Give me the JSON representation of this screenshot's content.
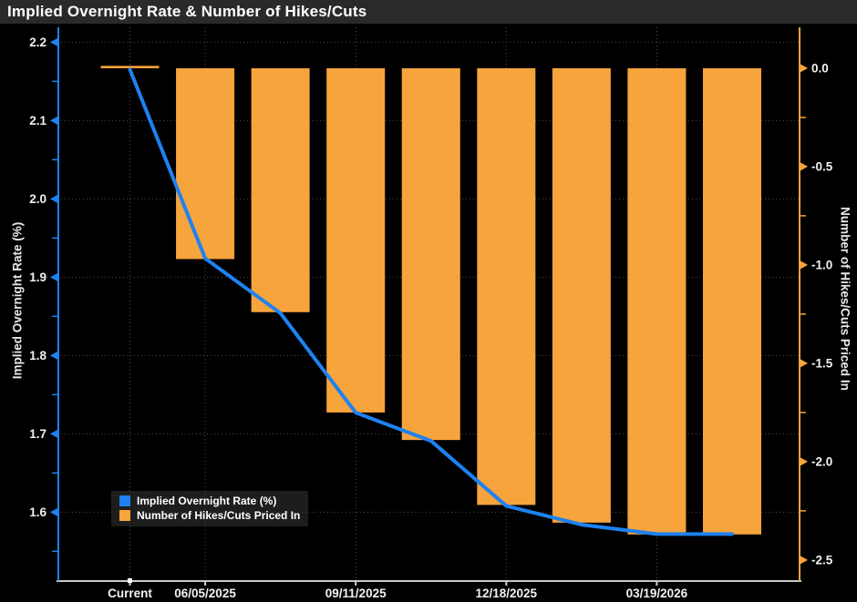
{
  "title": "Implied Overnight Rate & Number of Hikes/Cuts",
  "colors": {
    "background": "#000000",
    "titlebar_bg": "#2a2a2a",
    "line_blue": "#1e82f0",
    "bar_orange": "#f8a43c",
    "grid": "#4b4b4b",
    "bottom_axis": "#c8c8c8",
    "tick_text": "#f2f2f2"
  },
  "chart_data": {
    "type": "combo",
    "title": "Implied Overnight Rate & Number of Hikes/Cuts",
    "grid": "dotted",
    "legend_position": "bottom-left-inside",
    "num_slots": 9,
    "x_ticks": [
      {
        "label": "Current",
        "slot": 0
      },
      {
        "label": "06/05/2025",
        "slot": 1
      },
      {
        "label": "09/11/2025",
        "slot": 3
      },
      {
        "label": "12/18/2025",
        "slot": 5
      },
      {
        "label": "03/19/2026",
        "slot": 7
      }
    ],
    "series": [
      {
        "name": "Implied Overnight Rate (%)",
        "type": "line",
        "axis": "left",
        "color": "#1e82f0",
        "values": [
          2.165,
          1.924,
          1.854,
          1.727,
          1.691,
          1.608,
          1.584,
          1.572,
          1.572
        ]
      },
      {
        "name": "Number of Hikes/Cuts Priced In",
        "type": "bar",
        "axis": "right",
        "color": "#f8a43c",
        "values": [
          0.0,
          -0.97,
          -1.24,
          -1.75,
          -1.89,
          -2.22,
          -2.31,
          -2.37,
          -2.37
        ]
      }
    ],
    "left_axis": {
      "label": "Implied Overnight Rate (%)",
      "color": "#1e82f0",
      "ticks": [
        2.2,
        2.1,
        2.0,
        1.9,
        1.8,
        1.7,
        1.6
      ],
      "range": [
        1.512,
        2.219
      ]
    },
    "right_axis": {
      "label": "Number of Hikes/Cuts Priced In",
      "color": "#f8a43c",
      "ticks": [
        0.0,
        -0.5,
        -1.0,
        -1.5,
        -2.0,
        -2.5
      ],
      "range": [
        -2.607,
        0.208
      ]
    }
  }
}
